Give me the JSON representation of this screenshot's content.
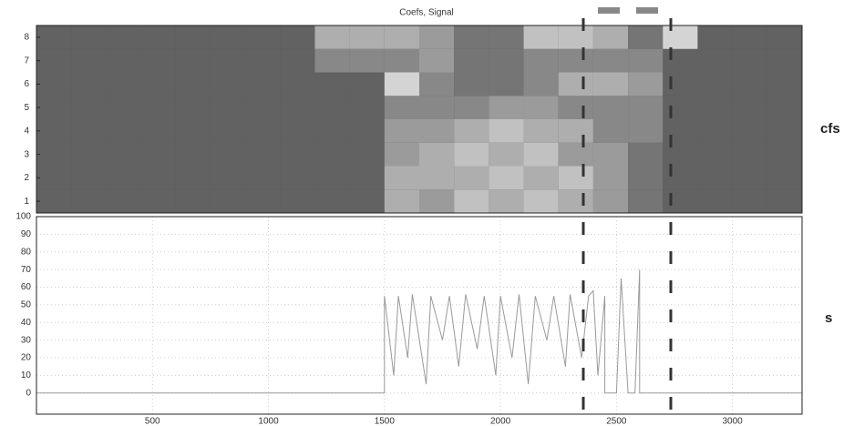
{
  "chart_data": [
    {
      "type": "heatmap",
      "title": "Coefs, Signal",
      "ylabel": "cfs",
      "x_edges": [
        0,
        150,
        300,
        450,
        600,
        750,
        900,
        1050,
        1200,
        1350,
        1500,
        1650,
        1800,
        1950,
        2100,
        2250,
        2400,
        2550,
        2700,
        2850,
        3000,
        3150,
        3300
      ],
      "xlim": [
        0,
        3300
      ],
      "ylim": [
        0.5,
        8.5
      ],
      "yticks": [
        1,
        2,
        3,
        4,
        5,
        6,
        7,
        8
      ],
      "z": [
        [
          0.2,
          0.2,
          0.2,
          0.2,
          0.2,
          0.2,
          0.2,
          0.2,
          0.2,
          0.2,
          0.6,
          0.5,
          0.7,
          0.6,
          0.7,
          0.6,
          0.5,
          0.3,
          0.2,
          0.2,
          0.2,
          0.2
        ],
        [
          0.2,
          0.2,
          0.2,
          0.2,
          0.2,
          0.2,
          0.2,
          0.2,
          0.2,
          0.2,
          0.6,
          0.6,
          0.6,
          0.7,
          0.6,
          0.7,
          0.5,
          0.3,
          0.2,
          0.2,
          0.2,
          0.2
        ],
        [
          0.2,
          0.2,
          0.2,
          0.2,
          0.2,
          0.2,
          0.2,
          0.2,
          0.2,
          0.2,
          0.5,
          0.6,
          0.7,
          0.6,
          0.7,
          0.5,
          0.5,
          0.3,
          0.2,
          0.2,
          0.2,
          0.2
        ],
        [
          0.2,
          0.2,
          0.2,
          0.2,
          0.2,
          0.2,
          0.2,
          0.2,
          0.2,
          0.2,
          0.5,
          0.5,
          0.6,
          0.7,
          0.6,
          0.6,
          0.4,
          0.4,
          0.2,
          0.2,
          0.2,
          0.2
        ],
        [
          0.2,
          0.2,
          0.2,
          0.2,
          0.2,
          0.2,
          0.2,
          0.2,
          0.2,
          0.2,
          0.4,
          0.4,
          0.4,
          0.5,
          0.5,
          0.4,
          0.4,
          0.4,
          0.2,
          0.2,
          0.2,
          0.2
        ],
        [
          0.2,
          0.2,
          0.2,
          0.2,
          0.2,
          0.2,
          0.2,
          0.2,
          0.2,
          0.2,
          0.8,
          0.4,
          0.3,
          0.3,
          0.4,
          0.6,
          0.6,
          0.5,
          0.2,
          0.2,
          0.2,
          0.2
        ],
        [
          0.2,
          0.2,
          0.2,
          0.2,
          0.2,
          0.2,
          0.2,
          0.2,
          0.4,
          0.4,
          0.4,
          0.5,
          0.3,
          0.3,
          0.4,
          0.4,
          0.4,
          0.4,
          0.2,
          0.2,
          0.2,
          0.2
        ],
        [
          0.2,
          0.2,
          0.2,
          0.2,
          0.2,
          0.2,
          0.2,
          0.2,
          0.6,
          0.6,
          0.6,
          0.5,
          0.3,
          0.3,
          0.7,
          0.7,
          0.6,
          0.3,
          0.8,
          0.2,
          0.2,
          0.2
        ]
      ]
    },
    {
      "type": "line",
      "ylabel": "s",
      "color": "#9a9a9a",
      "x": [
        0,
        1500,
        1500,
        1540,
        1560,
        1600,
        1620,
        1680,
        1700,
        1750,
        1780,
        1820,
        1850,
        1900,
        1930,
        1980,
        2000,
        2050,
        2080,
        2120,
        2150,
        2200,
        2230,
        2280,
        2300,
        2350,
        2380,
        2400,
        2420,
        2450,
        2450,
        2500,
        2520,
        2550,
        2580,
        2600,
        2600,
        3300
      ],
      "values": [
        0,
        0,
        55,
        10,
        55,
        20,
        56,
        5,
        55,
        30,
        55,
        15,
        56,
        25,
        55,
        10,
        55,
        20,
        56,
        5,
        55,
        30,
        55,
        15,
        56,
        20,
        55,
        58,
        10,
        55,
        0,
        0,
        65,
        0,
        0,
        70,
        0,
        0
      ],
      "xlim": [
        0,
        3300
      ],
      "xticks": [
        500,
        1000,
        1500,
        2000,
        2500,
        3000
      ],
      "ylim": [
        -12,
        100
      ],
      "yticks": [
        0,
        10,
        20,
        30,
        40,
        50,
        60,
        70,
        80,
        90,
        100
      ],
      "grid": true
    }
  ]
}
